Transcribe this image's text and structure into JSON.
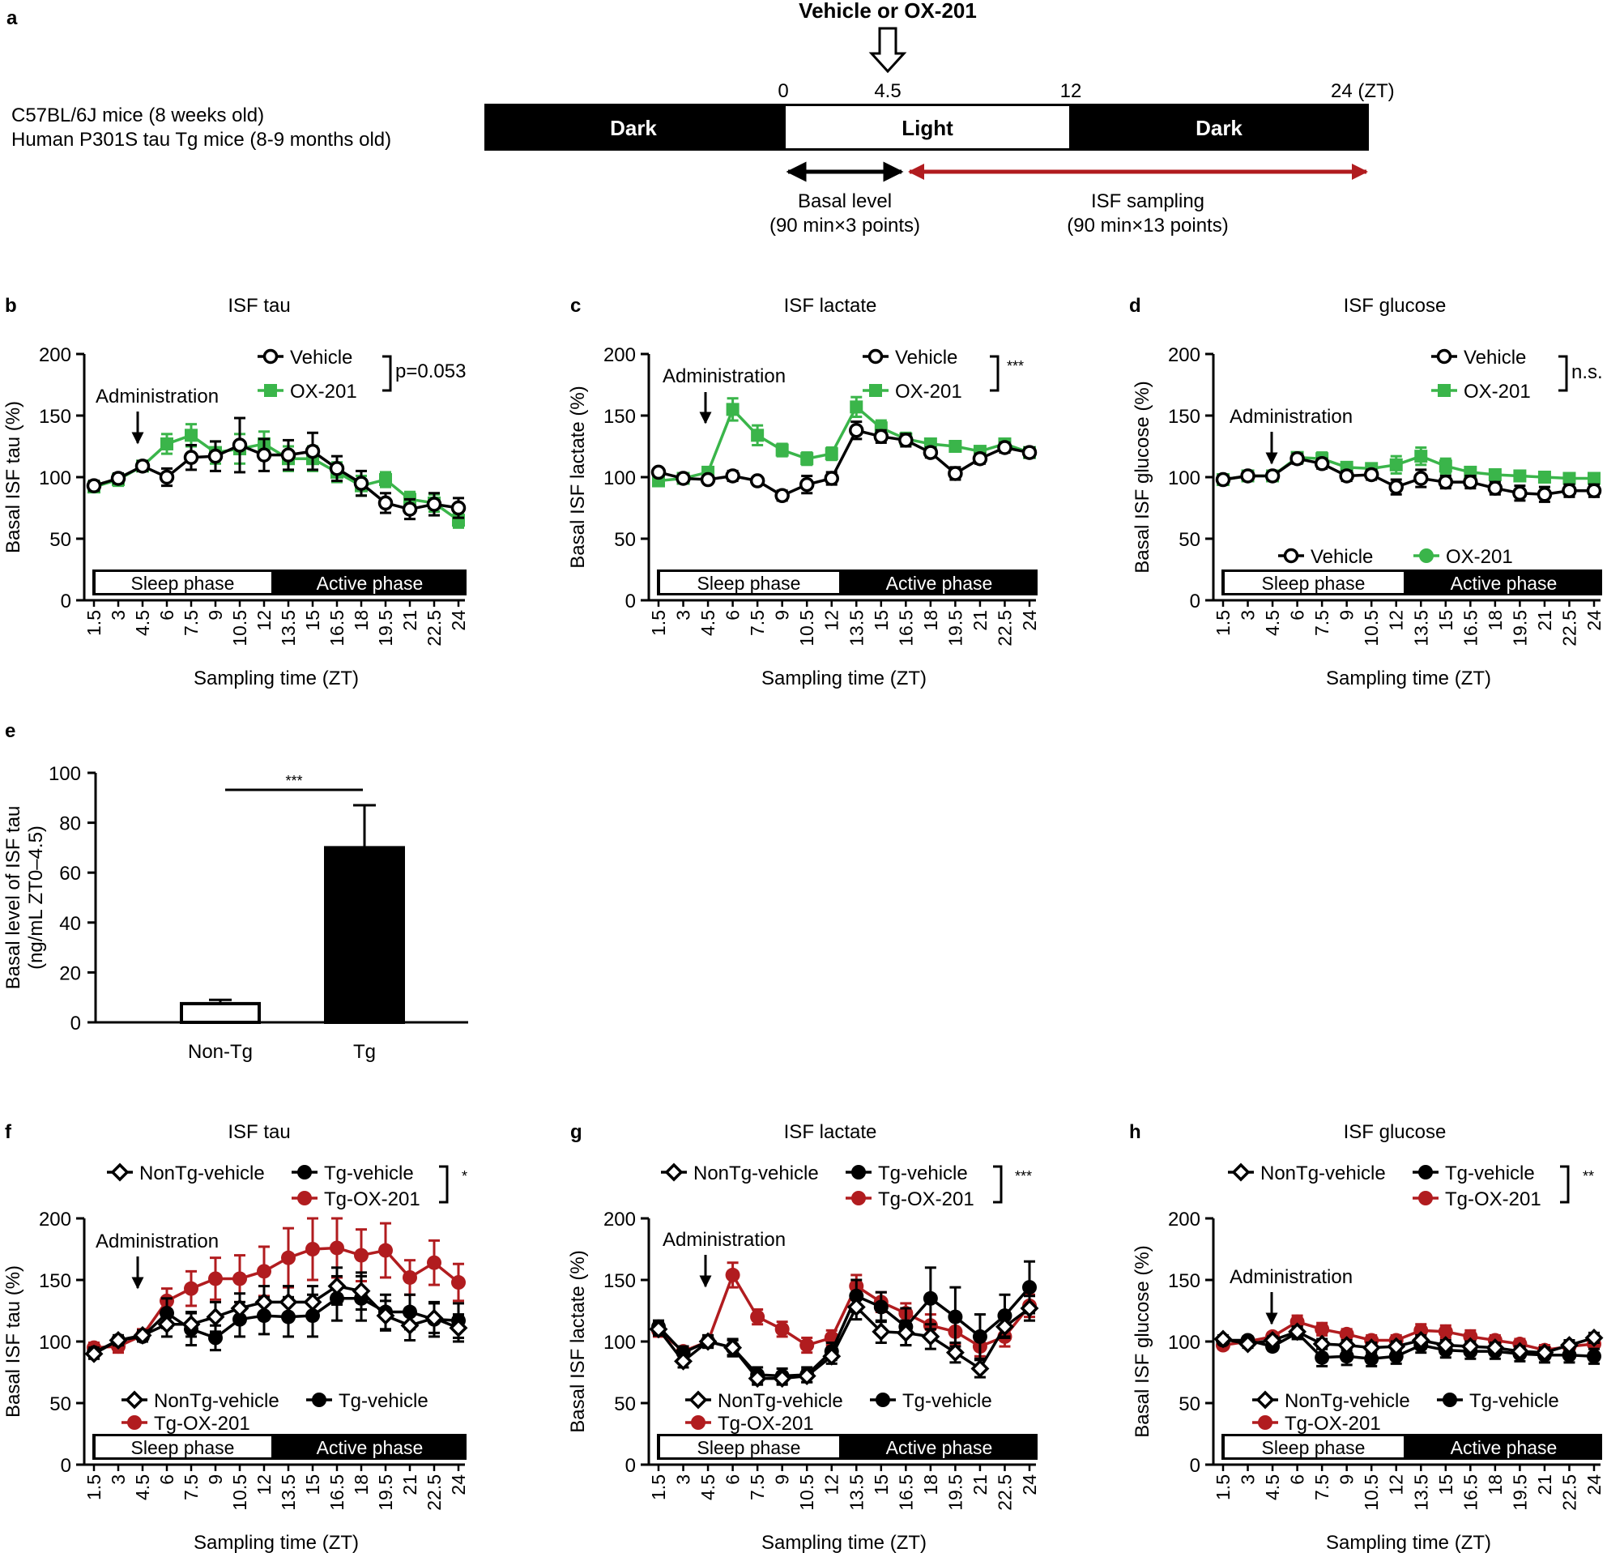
{
  "colors": {
    "black": "#000000",
    "green": "#3ab54a",
    "red": "#b11c1f",
    "vehicle_fill": "#ffffff"
  },
  "panel_a": {
    "letter": "a",
    "treatment": "Vehicle or OX-201",
    "mice_line1": "C57BL/6J mice (8 weeks old)",
    "mice_line2": "Human P301S tau Tg mice (8-9 months old)",
    "ticks": [
      "0",
      "4.5",
      "12",
      "24 (ZT)"
    ],
    "segments": [
      "Dark",
      "Light",
      "Dark"
    ],
    "basal_label": "Basal level",
    "basal_sub": "(90 min×3 points)",
    "isf_label": "ISF sampling",
    "isf_sub": "(90 min×13 points)"
  },
  "common": {
    "x_ticks": [
      "1.5",
      "3",
      "4.5",
      "6",
      "7.5",
      "9",
      "10.5",
      "12",
      "13.5",
      "15",
      "16.5",
      "18",
      "19.5",
      "21",
      "22.5",
      "24"
    ],
    "x_label": "Sampling time (ZT)",
    "sleep_label": "Sleep phase",
    "active_label": "Active phase",
    "admin_label": "Administration"
  },
  "chart_data": [
    {
      "id": "b",
      "type": "line",
      "title": "ISF tau",
      "ylabel": "Basal ISF tau (%)",
      "ylim": [
        0,
        200
      ],
      "yticks": [
        0,
        50,
        100,
        150,
        200
      ],
      "x": [
        1.5,
        3,
        4.5,
        6,
        7.5,
        9,
        10.5,
        12,
        13.5,
        15,
        16.5,
        18,
        19.5,
        21,
        22.5,
        24
      ],
      "series": [
        {
          "name": "OX-201",
          "color": "green",
          "marker": "square",
          "values": [
            92,
            98,
            109,
            127,
            134,
            120,
            123,
            127,
            115,
            115,
            104,
            93,
            98,
            82,
            79,
            65
          ],
          "errors": [
            4,
            5,
            4,
            8,
            9,
            9,
            12,
            10,
            10,
            10,
            8,
            8,
            6,
            6,
            7,
            6
          ]
        },
        {
          "name": "Vehicle",
          "color": "black",
          "marker": "circle-open",
          "values": [
            93,
            99,
            109,
            100,
            116,
            117,
            126,
            118,
            118,
            121,
            107,
            95,
            79,
            74,
            78,
            75
          ],
          "errors": [
            4,
            4,
            4,
            7,
            10,
            12,
            22,
            13,
            12,
            15,
            10,
            10,
            8,
            8,
            9,
            8
          ]
        }
      ],
      "legend": [
        "Vehicle",
        "OX-201"
      ],
      "stat": "p=0.053"
    },
    {
      "id": "c",
      "type": "line",
      "title": "ISF lactate",
      "ylabel": "Basal ISF lactate (%)",
      "ylim": [
        0,
        200
      ],
      "yticks": [
        0,
        50,
        100,
        150,
        200
      ],
      "x": [
        1.5,
        3,
        4.5,
        6,
        7.5,
        9,
        10.5,
        12,
        13.5,
        15,
        16.5,
        18,
        19.5,
        21,
        22.5,
        24
      ],
      "series": [
        {
          "name": "OX-201",
          "color": "green",
          "marker": "square",
          "values": [
            97,
            99,
            104,
            155,
            134,
            122,
            115,
            119,
            157,
            140,
            131,
            127,
            125,
            121,
            127,
            120
          ],
          "errors": [
            3,
            3,
            4,
            9,
            8,
            5,
            5,
            5,
            8,
            6,
            5,
            4,
            4,
            4,
            4,
            4
          ]
        },
        {
          "name": "Vehicle",
          "color": "black",
          "marker": "circle-open",
          "values": [
            104,
            99,
            98,
            101,
            97,
            85,
            94,
            99,
            138,
            133,
            130,
            120,
            103,
            115,
            124,
            120
          ],
          "errors": [
            3,
            3,
            3,
            4,
            3,
            4,
            7,
            5,
            7,
            5,
            5,
            4,
            5,
            4,
            4,
            4
          ]
        }
      ],
      "legend": [
        "Vehicle",
        "OX-201"
      ],
      "stat": "***"
    },
    {
      "id": "d",
      "type": "line",
      "title": "ISF glucose",
      "ylabel": "Basal ISF glucose (%)",
      "ylim": [
        0,
        200
      ],
      "yticks": [
        0,
        50,
        100,
        150,
        200
      ],
      "x": [
        1.5,
        3,
        4.5,
        6,
        7.5,
        9,
        10.5,
        12,
        13.5,
        15,
        16.5,
        18,
        19.5,
        21,
        22.5,
        24
      ],
      "series": [
        {
          "name": "OX-201",
          "color": "green",
          "marker": "square",
          "values": [
            98,
            101,
            101,
            116,
            115,
            108,
            107,
            110,
            117,
            109,
            104,
            102,
            101,
            100,
            99,
            99
          ],
          "errors": [
            3,
            3,
            3,
            4,
            5,
            4,
            4,
            7,
            7,
            6,
            4,
            4,
            4,
            4,
            4,
            4
          ]
        },
        {
          "name": "Vehicle",
          "color": "black",
          "marker": "circle-open",
          "values": [
            98,
            101,
            101,
            115,
            111,
            101,
            102,
            92,
            99,
            96,
            96,
            91,
            87,
            86,
            89,
            89
          ],
          "errors": [
            3,
            3,
            3,
            4,
            4,
            4,
            4,
            6,
            7,
            5,
            5,
            5,
            6,
            6,
            5,
            5
          ]
        }
      ],
      "legend": [
        "Vehicle",
        "OX-201"
      ],
      "stat": "n.s."
    },
    {
      "id": "e",
      "type": "bar",
      "ylabel_line1": "Basal level of ISF tau",
      "ylabel_line2": "(ng/mL ZT0–4.5)",
      "categories": [
        "Non-Tg",
        "Tg"
      ],
      "values": [
        7.5,
        70
      ],
      "errors": [
        1.5,
        17
      ],
      "ylim": [
        0,
        100
      ],
      "yticks": [
        0,
        20,
        40,
        60,
        80,
        100
      ],
      "stat": "***"
    },
    {
      "id": "f",
      "type": "line",
      "title": "ISF tau",
      "ylabel": "Basal ISF tau (%)",
      "ylim": [
        0,
        200
      ],
      "yticks": [
        0,
        50,
        100,
        150,
        200
      ],
      "x": [
        1.5,
        3,
        4.5,
        6,
        7.5,
        9,
        10.5,
        12,
        13.5,
        15,
        16.5,
        18,
        19.5,
        21,
        22.5,
        24
      ],
      "series": [
        {
          "name": "Tg-OX-201",
          "color": "red",
          "marker": "circle-filled",
          "values": [
            95,
            96,
            105,
            133,
            143,
            151,
            151,
            157,
            168,
            175,
            176,
            170,
            174,
            152,
            164,
            148
          ],
          "errors": [
            4,
            5,
            5,
            10,
            14,
            17,
            19,
            20,
            24,
            25,
            24,
            21,
            22,
            14,
            18,
            15
          ]
        },
        {
          "name": "Tg-vehicle",
          "color": "black",
          "marker": "circle-filled",
          "values": [
            91,
            101,
            104,
            123,
            110,
            103,
            118,
            121,
            120,
            121,
            135,
            135,
            124,
            124,
            118,
            117
          ],
          "errors": [
            4,
            4,
            4,
            12,
            13,
            10,
            14,
            15,
            16,
            17,
            18,
            18,
            14,
            14,
            14,
            14
          ]
        },
        {
          "name": "NonTg-vehicle",
          "color": "black",
          "marker": "diamond-open",
          "values": [
            90,
            101,
            105,
            114,
            114,
            120,
            127,
            132,
            132,
            132,
            145,
            141,
            121,
            113,
            119,
            111
          ],
          "errors": [
            4,
            4,
            4,
            10,
            10,
            12,
            12,
            13,
            13,
            13,
            15,
            15,
            12,
            12,
            12,
            11
          ]
        }
      ],
      "legend": [
        "NonTg-vehicle",
        "Tg-vehicle",
        "Tg-OX-201"
      ],
      "stat": "*"
    },
    {
      "id": "g",
      "type": "line",
      "title": "ISF lactate",
      "ylabel": "Basal ISF lactate (%)",
      "ylim": [
        0,
        200
      ],
      "yticks": [
        0,
        50,
        100,
        150,
        200
      ],
      "x": [
        1.5,
        3,
        4.5,
        6,
        7.5,
        9,
        10.5,
        12,
        13.5,
        15,
        16.5,
        18,
        19.5,
        21,
        22.5,
        24
      ],
      "series": [
        {
          "name": "Tg-OX-201",
          "color": "red",
          "marker": "circle-filled",
          "values": [
            109,
            92,
            100,
            154,
            120,
            110,
            97,
            103,
            145,
            132,
            123,
            113,
            108,
            96,
            104,
            129
          ],
          "errors": [
            5,
            4,
            4,
            10,
            6,
            6,
            6,
            6,
            9,
            8,
            8,
            9,
            10,
            8,
            8,
            9
          ]
        },
        {
          "name": "Tg-vehicle",
          "color": "black",
          "marker": "circle-filled",
          "values": [
            112,
            91,
            100,
            95,
            73,
            72,
            73,
            92,
            137,
            128,
            112,
            135,
            120,
            104,
            121,
            144
          ],
          "errors": [
            5,
            5,
            5,
            7,
            6,
            6,
            6,
            7,
            13,
            12,
            15,
            25,
            24,
            18,
            17,
            21
          ]
        },
        {
          "name": "NonTg-vehicle",
          "color": "black",
          "marker": "diamond-open",
          "values": [
            110,
            84,
            100,
            95,
            70,
            70,
            72,
            88,
            128,
            108,
            107,
            104,
            91,
            78,
            112,
            127
          ],
          "errors": [
            5,
            5,
            5,
            6,
            5,
            5,
            5,
            6,
            10,
            9,
            10,
            10,
            8,
            7,
            9,
            10
          ]
        }
      ],
      "legend": [
        "NonTg-vehicle",
        "Tg-vehicle",
        "Tg-OX-201"
      ],
      "stat": "***"
    },
    {
      "id": "h",
      "type": "line",
      "title": "ISF glucose",
      "ylabel": "Basal ISF glucose (%)",
      "ylim": [
        0,
        200
      ],
      "yticks": [
        0,
        50,
        100,
        150,
        200
      ],
      "x": [
        1.5,
        3,
        4.5,
        6,
        7.5,
        9,
        10.5,
        12,
        13.5,
        15,
        16.5,
        18,
        19.5,
        21,
        22.5,
        24
      ],
      "series": [
        {
          "name": "Tg-OX-201",
          "color": "red",
          "marker": "circle-filled",
          "values": [
            97,
            100,
            104,
            116,
            110,
            106,
            101,
            101,
            109,
            108,
            104,
            101,
            98,
            93,
            96,
            98
          ],
          "errors": [
            3,
            3,
            3,
            5,
            5,
            4,
            4,
            4,
            5,
            5,
            5,
            4,
            4,
            4,
            4,
            4
          ]
        },
        {
          "name": "Tg-vehicle",
          "color": "black",
          "marker": "circle-filled",
          "values": [
            101,
            101,
            96,
            107,
            87,
            88,
            86,
            88,
            97,
            93,
            92,
            92,
            90,
            89,
            89,
            88
          ],
          "errors": [
            3,
            3,
            3,
            5,
            7,
            7,
            6,
            6,
            6,
            6,
            6,
            6,
            6,
            6,
            6,
            6
          ]
        },
        {
          "name": "NonTg-vehicle",
          "color": "black",
          "marker": "diamond-open",
          "values": [
            102,
            98,
            101,
            108,
            98,
            97,
            95,
            96,
            101,
            97,
            96,
            95,
            92,
            91,
            97,
            103
          ],
          "errors": [
            3,
            3,
            3,
            4,
            4,
            4,
            4,
            4,
            4,
            4,
            4,
            4,
            4,
            4,
            4,
            4
          ]
        }
      ],
      "legend": [
        "NonTg-vehicle",
        "Tg-vehicle",
        "Tg-OX-201"
      ],
      "stat": "**"
    }
  ]
}
